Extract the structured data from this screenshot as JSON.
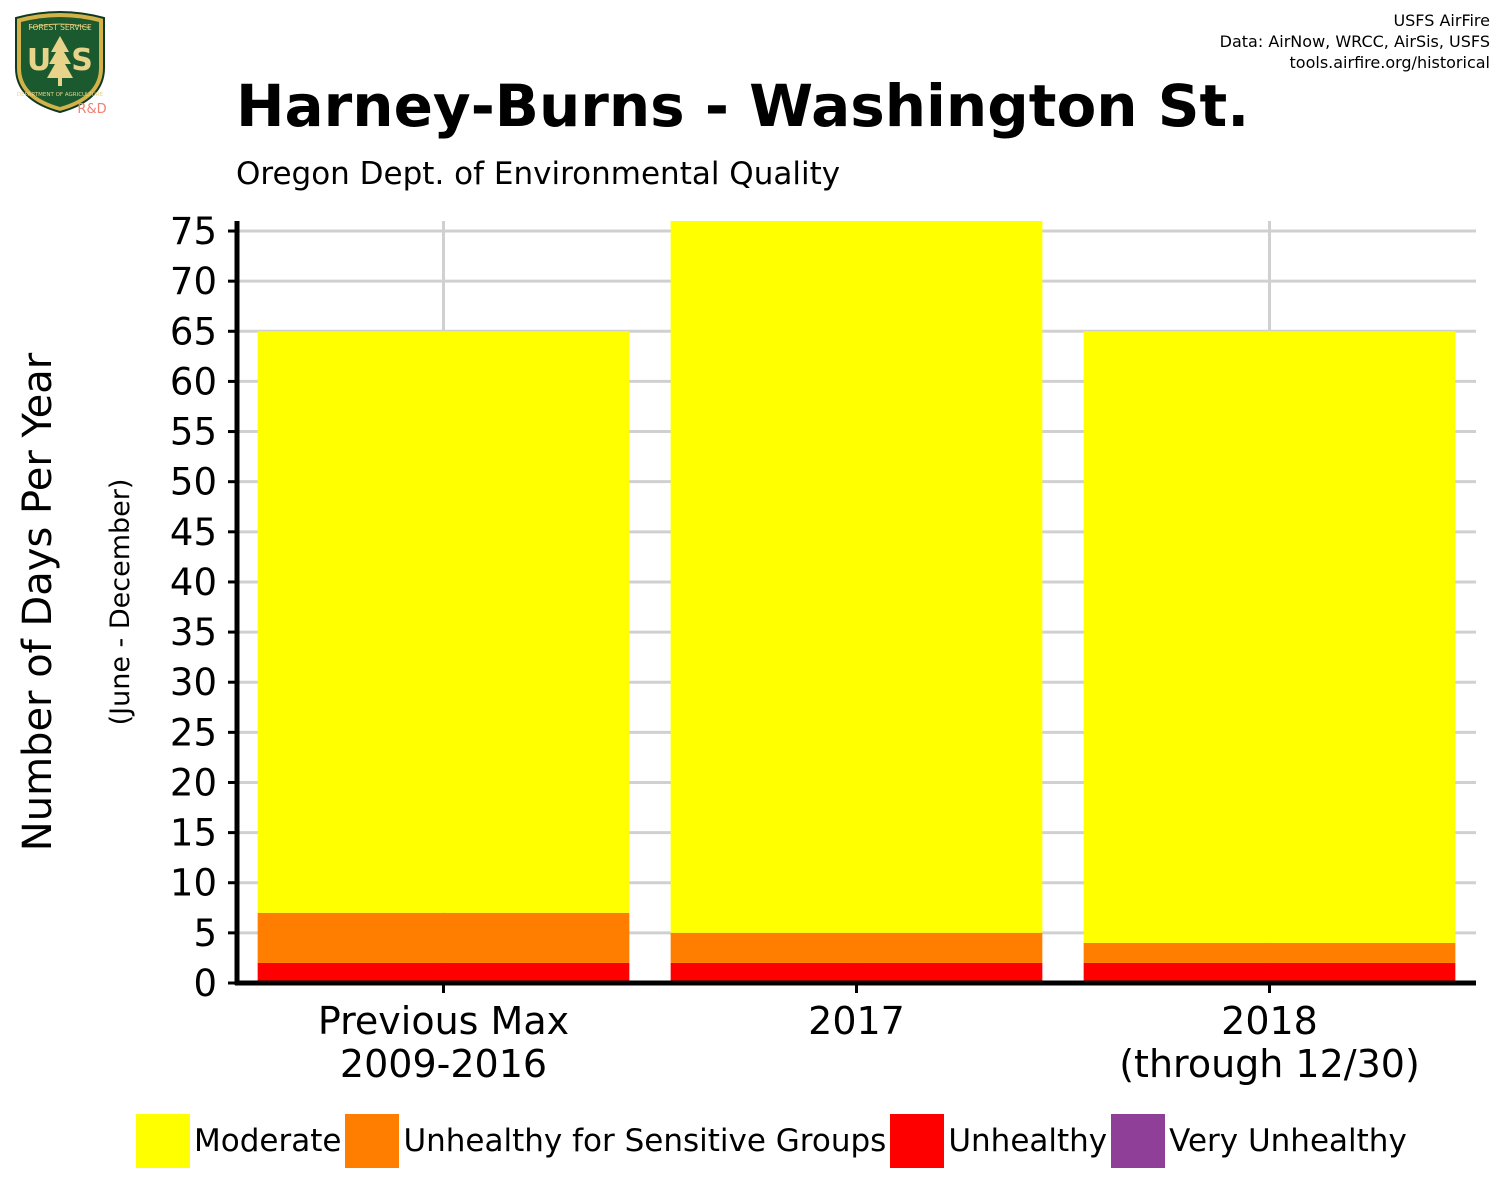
{
  "logo": {
    "top_text": "FOREST SERVICE",
    "initials_left": "U",
    "initials_right": "S",
    "bottom_text": "DEPARTMENT OF AGRICULTURE",
    "badge": "R&D"
  },
  "credits": [
    "USFS AirFire",
    "Data: AirNow, WRCC, AirSis, USFS",
    "tools.airfire.org/historical"
  ],
  "chart_data": {
    "type": "bar",
    "stacked": true,
    "title": "Harney-Burns - Washington St.",
    "subtitle": "Oregon Dept. of Environmental Quality",
    "ylabel": "Number of Days Per Year",
    "ylabel_sub": "(June - December)",
    "categories": [
      [
        "Previous Max",
        "2009-2016"
      ],
      [
        "2017"
      ],
      [
        "2018",
        "(through 12/30)"
      ]
    ],
    "series": [
      {
        "name": "Moderate",
        "color": "#ffff00",
        "values": [
          58,
          71,
          61
        ]
      },
      {
        "name": "Unhealthy for Sensitive Groups",
        "color": "#ff7e00",
        "values": [
          5,
          3,
          2
        ]
      },
      {
        "name": "Unhealthy",
        "color": "#ff0000",
        "values": [
          2,
          2,
          2
        ]
      },
      {
        "name": "Very Unhealthy",
        "color": "#8f3f97",
        "values": [
          0,
          0,
          0
        ]
      }
    ],
    "stack_order": [
      "Unhealthy",
      "Unhealthy for Sensitive Groups",
      "Moderate"
    ],
    "ylim": [
      0,
      76
    ],
    "yticks": [
      0,
      5,
      10,
      15,
      20,
      25,
      30,
      35,
      40,
      45,
      50,
      55,
      60,
      65,
      70,
      75
    ],
    "grid": true,
    "legend_position": "bottom"
  }
}
